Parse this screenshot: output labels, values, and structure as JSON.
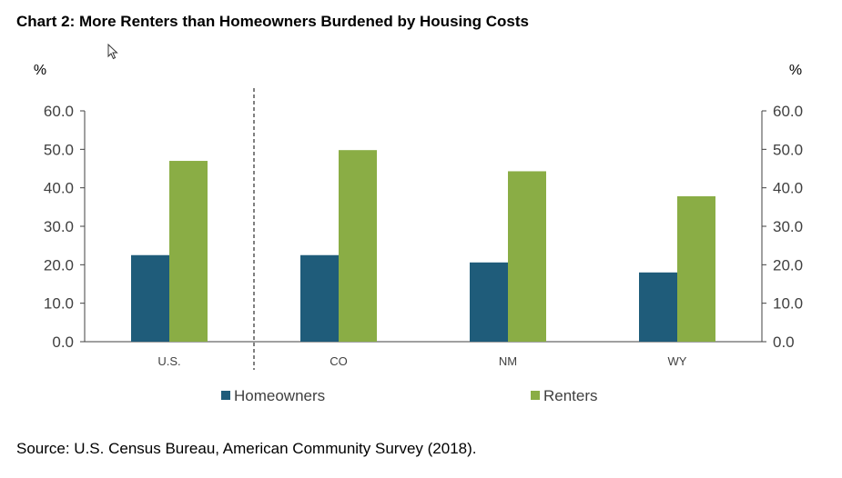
{
  "header": {
    "title": "Chart 2: More Renters than Homeowners Burdened by Housing Costs"
  },
  "footer": {
    "source": "Source: U.S. Census Bureau, American Community Survey (2018)."
  },
  "chart_data": {
    "type": "bar",
    "title": "Chart 2: More Renters than Homeowners Burdened by Housing Costs",
    "categories": [
      "U.S.",
      "CO",
      "NM",
      "WY"
    ],
    "series": [
      {
        "name": "Homeowners",
        "values": [
          22.5,
          22.5,
          20.6,
          18.0
        ],
        "color": "#1f5c7a"
      },
      {
        "name": "Renters",
        "values": [
          47.0,
          49.8,
          44.3,
          37.8
        ],
        "color": "#8aad45"
      }
    ],
    "ylim": [
      0,
      60
    ],
    "y_ticks": [
      "0.0",
      "10.0",
      "20.0",
      "30.0",
      "40.0",
      "50.0",
      "60.0"
    ],
    "y_unit_left": "%",
    "y_unit_right": "%",
    "grid": false,
    "legend_position": "bottom",
    "separator_after_category": "U.S."
  }
}
